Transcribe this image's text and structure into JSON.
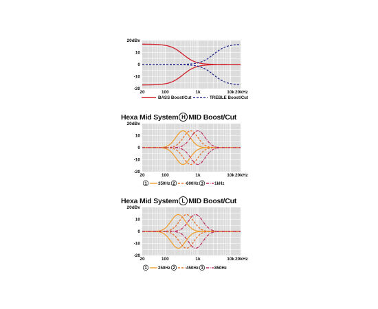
{
  "chart_data": [
    {
      "type": "line",
      "title": "",
      "ylabel_unit": "20dBv",
      "xlim": [
        20,
        20000
      ],
      "ylim": [
        -20,
        20
      ],
      "x_scale": "log",
      "grid": true,
      "x_ticks": [
        "20",
        "100",
        "1k",
        "10k",
        "20kHz"
      ],
      "y_ticks": [
        "20dBv",
        "10",
        "0",
        "-10",
        "-20"
      ],
      "series": [
        {
          "name": "BASS Boost/Cut",
          "style": "solid",
          "color": "#d0202a",
          "kind": "lowshelf",
          "gains": [
            17,
            -17
          ],
          "fc": 350
        },
        {
          "name": "TREBLE Boost/Cut",
          "style": "dashed",
          "color": "#2a2f8f",
          "kind": "highshelf",
          "gains": [
            17,
            -17
          ],
          "fc": 3000
        }
      ],
      "legend": [
        {
          "label": "BASS Boost/Cut"
        },
        {
          "label": "TREBLE Boost/Cut"
        }
      ]
    },
    {
      "type": "line",
      "title": "Hexa Mid System",
      "title_mark": "H",
      "title_suffix": "MID Boost/Cut",
      "xlim": [
        20,
        20000
      ],
      "ylim": [
        -20,
        20
      ],
      "x_scale": "log",
      "grid": true,
      "x_ticks": [
        "20",
        "100",
        "1k",
        "10k",
        "20kHz"
      ],
      "y_ticks": [
        "20dBv",
        "10",
        "0",
        "-10",
        "-20"
      ],
      "series": [
        {
          "name": "350Hz",
          "num": "1",
          "style": "solid",
          "color": "#f0a030",
          "kind": "peak",
          "gains": [
            14,
            -14
          ],
          "fc": 350
        },
        {
          "name": "600Hz",
          "num": "2",
          "style": "dashed",
          "color": "#e8702a",
          "kind": "peak",
          "gains": [
            14,
            -14
          ],
          "fc": 600
        },
        {
          "name": "1kHz",
          "num": "3",
          "style": "dashdot",
          "color": "#c0305a",
          "kind": "peak",
          "gains": [
            14,
            -14
          ],
          "fc": 1000
        }
      ],
      "legend": [
        {
          "num": "1",
          "label": "350Hz"
        },
        {
          "num": "2",
          "label": "600Hz"
        },
        {
          "num": "3",
          "label": "1kHz"
        }
      ]
    },
    {
      "type": "line",
      "title": "Hexa Mid System",
      "title_mark": "L",
      "title_suffix": "MID Boost/Cut",
      "xlim": [
        20,
        20000
      ],
      "ylim": [
        -20,
        20
      ],
      "x_scale": "log",
      "grid": true,
      "x_ticks": [
        "20",
        "100",
        "1k",
        "10k",
        "20kHz"
      ],
      "y_ticks": [
        "20dBv",
        "10",
        "0",
        "-10",
        "-20"
      ],
      "series": [
        {
          "name": "250Hz",
          "num": "1",
          "style": "solid",
          "color": "#f0a030",
          "kind": "peak",
          "gains": [
            14,
            -14
          ],
          "fc": 250
        },
        {
          "name": "450Hz",
          "num": "2",
          "style": "dashed",
          "color": "#e8702a",
          "kind": "peak",
          "gains": [
            14,
            -14
          ],
          "fc": 450
        },
        {
          "name": "850Hz",
          "num": "3",
          "style": "dashdot",
          "color": "#c0305a",
          "kind": "peak",
          "gains": [
            14,
            -14
          ],
          "fc": 850
        }
      ],
      "legend": [
        {
          "num": "1",
          "label": "250Hz"
        },
        {
          "num": "2",
          "label": "450Hz"
        },
        {
          "num": "3",
          "label": "850Hz"
        }
      ]
    }
  ]
}
